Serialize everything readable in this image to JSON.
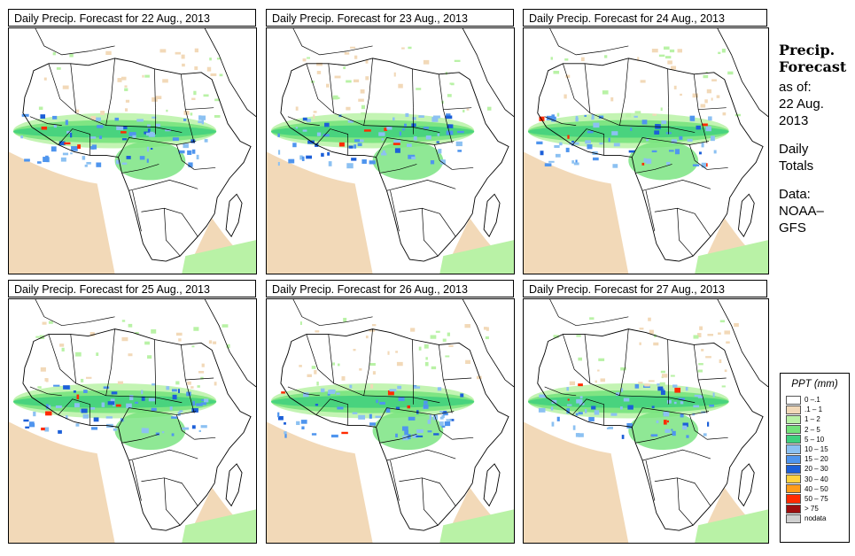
{
  "panels": [
    {
      "title": "Daily Precip. Forecast for  22 Aug., 2013",
      "seed": 1
    },
    {
      "title": "Daily Precip. Forecast for  23 Aug., 2013",
      "seed": 2
    },
    {
      "title": "Daily Precip. Forecast for  24 Aug., 2013",
      "seed": 3
    },
    {
      "title": "Daily Precip. Forecast for  25 Aug., 2013",
      "seed": 4
    },
    {
      "title": "Daily Precip. Forecast for  26 Aug., 2013",
      "seed": 5
    },
    {
      "title": "Daily Precip. Forecast for  27 Aug., 2013",
      "seed": 6
    }
  ],
  "side": {
    "heading1": "Precip.",
    "heading2": "Forecast",
    "asof": "as of:",
    "date1": "22 Aug.",
    "date2": "2013",
    "daily1": "Daily",
    "daily2": "Totals",
    "data1": "Data:",
    "data2": "NOAA–",
    "data3": "GFS"
  },
  "legend": {
    "title": "PPT (mm)",
    "items": [
      {
        "label": "0 –.1",
        "color": "#ffffff"
      },
      {
        "label": ".1 – 1",
        "color": "#f2d9b8"
      },
      {
        "label": "1 – 2",
        "color": "#b9f2a6"
      },
      {
        "label": "2 – 5",
        "color": "#73e27a"
      },
      {
        "label": "5 – 10",
        "color": "#3fd07e"
      },
      {
        "label": "10 – 15",
        "color": "#8cc1f2"
      },
      {
        "label": "15 – 20",
        "color": "#4f95ee"
      },
      {
        "label": "20 – 30",
        "color": "#1c5fd8"
      },
      {
        "label": "30 – 40",
        "color": "#ffd23f"
      },
      {
        "label": "40 – 50",
        "color": "#ff9c1a"
      },
      {
        "label": "50 – 75",
        "color": "#ff2a00"
      },
      {
        "label": "> 75",
        "color": "#9e0e0e"
      },
      {
        "label": "nodata",
        "color": "#cfcfcf"
      }
    ]
  },
  "colors": {
    "dry": "#f2d9b8",
    "light": "#b9f2a6",
    "moderate": "#73e27a",
    "heavy": "#3fd07e",
    "blue1": "#8cc1f2",
    "blue2": "#4f95ee",
    "blue3": "#1c5fd8",
    "red": "#ff2a00",
    "orange": "#ff9c1a"
  }
}
